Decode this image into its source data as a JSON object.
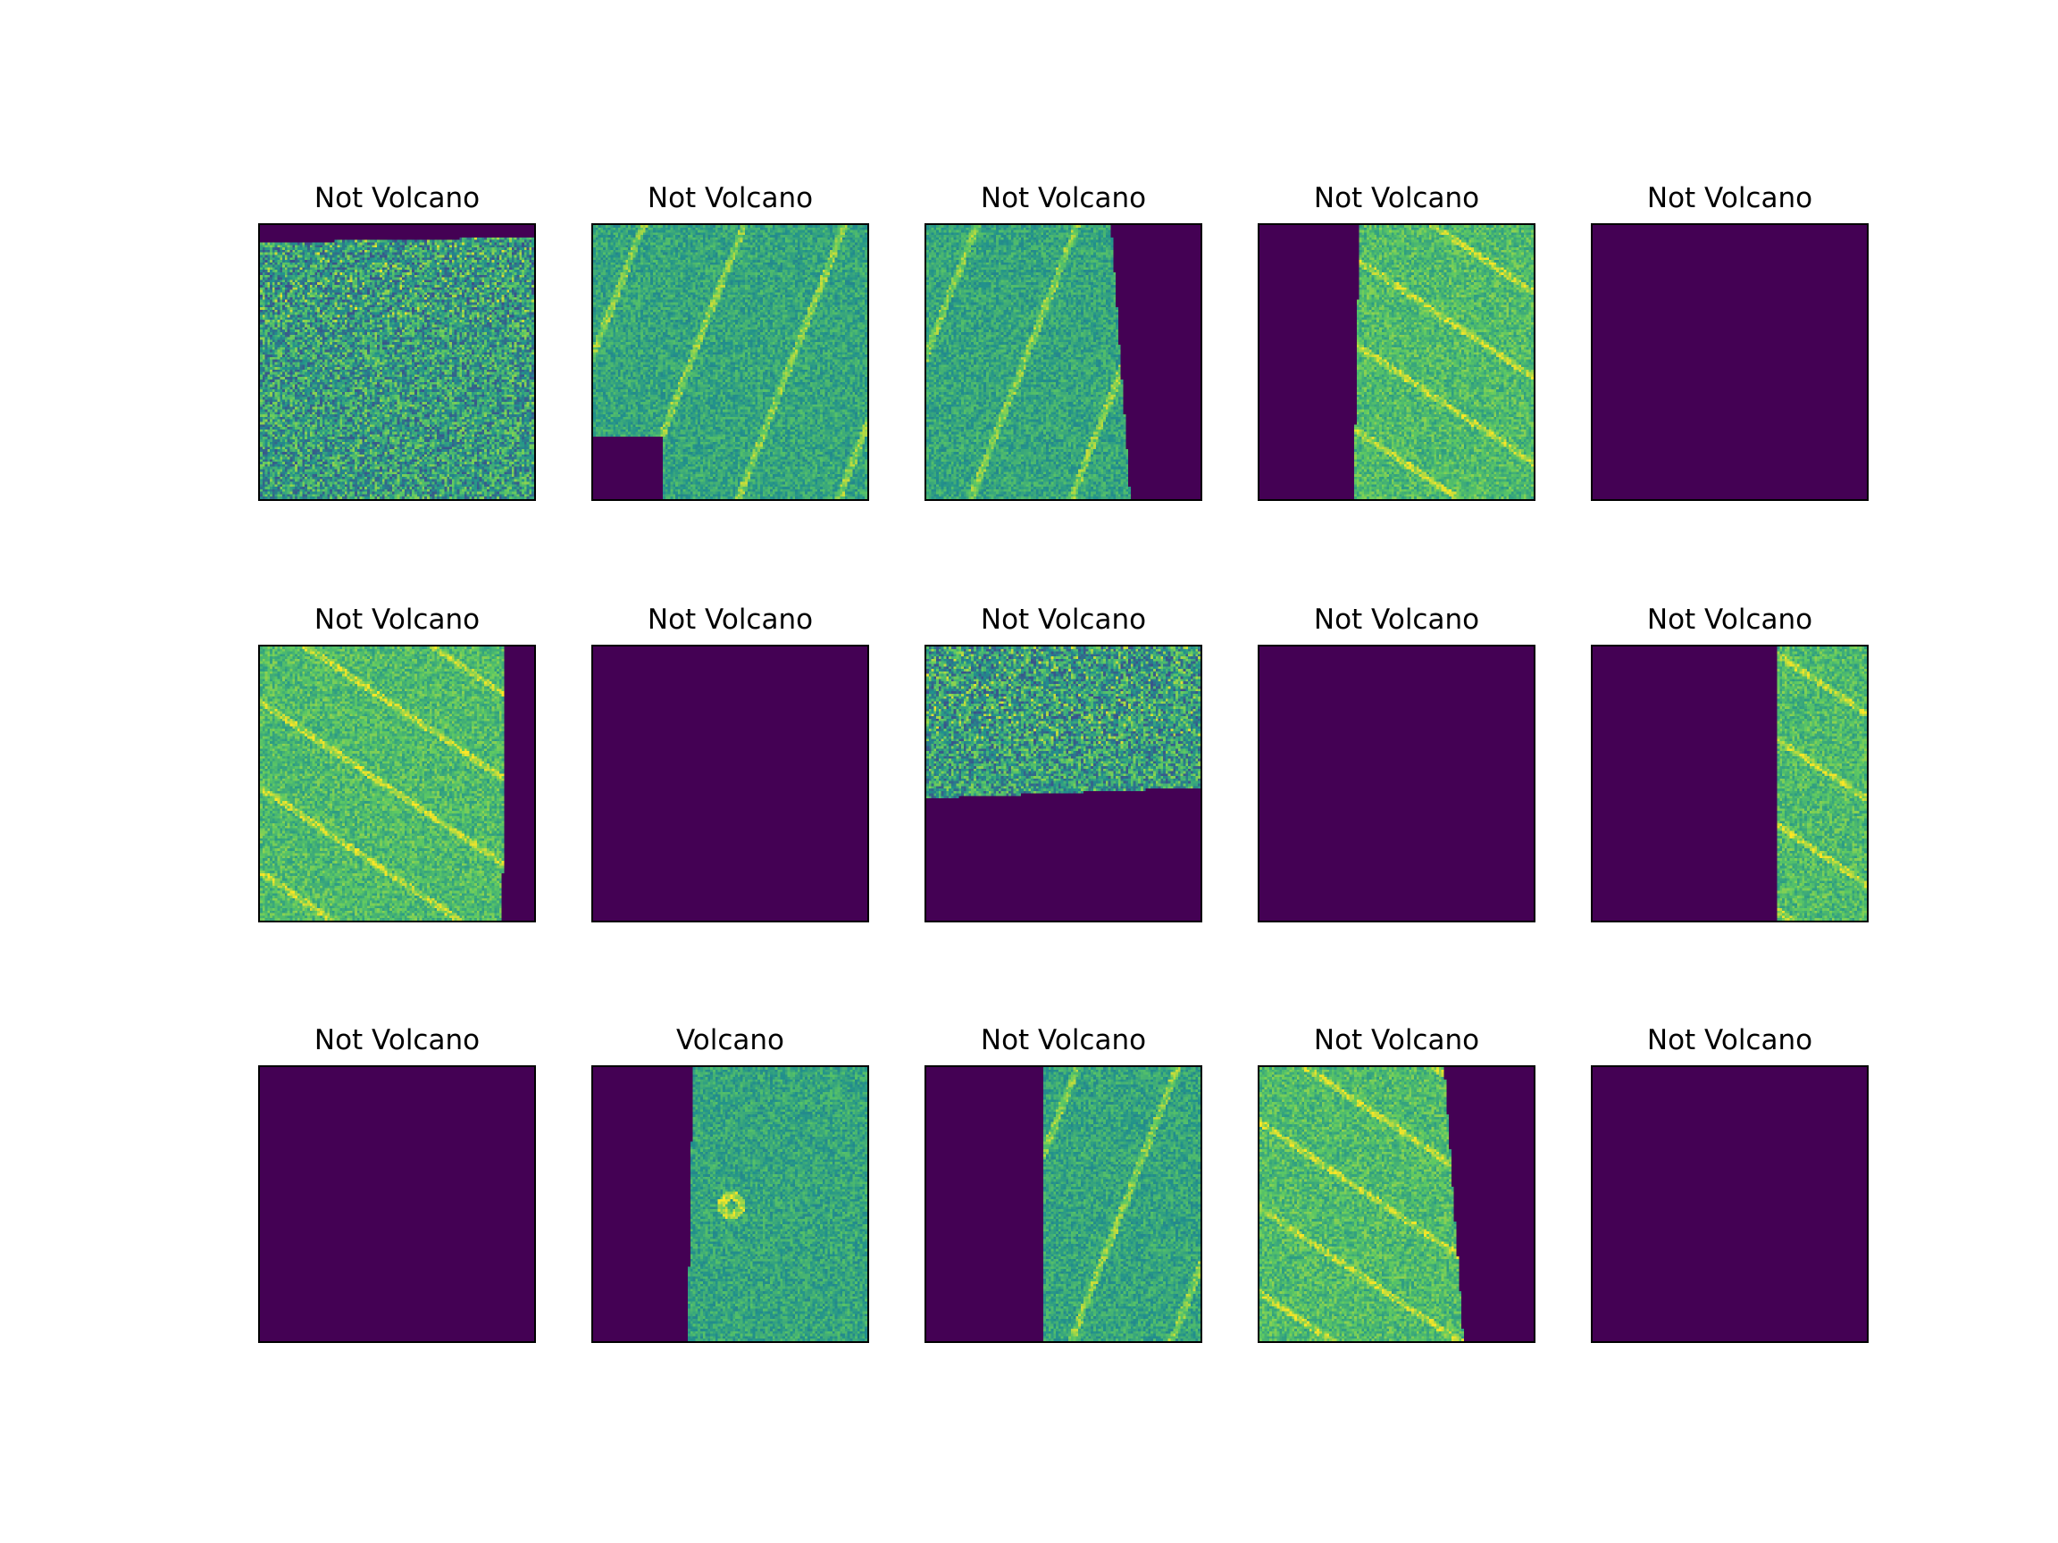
{
  "colors": {
    "background": "#440154",
    "low": "#3b528b",
    "mid": "#21918c",
    "high": "#5ec962",
    "peak": "#fde725"
  },
  "panels": [
    {
      "title": "Not Volcano",
      "mask": "top-band",
      "texture": "noisy"
    },
    {
      "title": "Not Volcano",
      "mask": "bottom-left-notch",
      "texture": "streaks"
    },
    {
      "title": "Not Volcano",
      "mask": "right-band",
      "texture": "streaks"
    },
    {
      "title": "Not Volcano",
      "mask": "left-band",
      "texture": "bright"
    },
    {
      "title": "Not Volcano",
      "mask": "empty",
      "texture": "none"
    },
    {
      "title": "Not Volcano",
      "mask": "right-strip",
      "texture": "bright"
    },
    {
      "title": "Not Volcano",
      "mask": "empty",
      "texture": "none"
    },
    {
      "title": "Not Volcano",
      "mask": "bottom-band",
      "texture": "noisy"
    },
    {
      "title": "Not Volcano",
      "mask": "empty",
      "texture": "none"
    },
    {
      "title": "Not Volcano",
      "mask": "left-wide",
      "texture": "bright"
    },
    {
      "title": "Not Volcano",
      "mask": "empty",
      "texture": "none"
    },
    {
      "title": "Volcano",
      "mask": "left-band",
      "texture": "volcano"
    },
    {
      "title": "Not Volcano",
      "mask": "left-wide-right-edge",
      "texture": "streaks"
    },
    {
      "title": "Not Volcano",
      "mask": "right-band",
      "texture": "bright"
    },
    {
      "title": "Not Volcano",
      "mask": "empty",
      "texture": "none"
    }
  ]
}
